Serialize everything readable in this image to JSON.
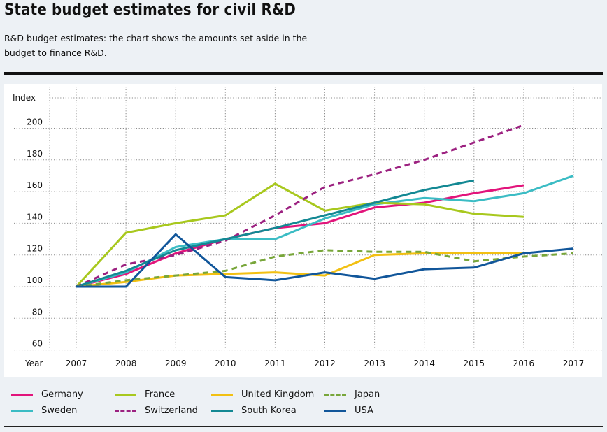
{
  "header": {
    "title": "State budget estimates for civil R&D",
    "subtitle": "R&D budget estimates: the chart shows the amounts set aside in the budget to finance R&D."
  },
  "chart_data": {
    "type": "line",
    "title": "State budget estimates for civil R&D",
    "xlabel": "Year",
    "ylabel": "Index",
    "x": [
      2007,
      2008,
      2009,
      2010,
      2011,
      2012,
      2013,
      2014,
      2015,
      2016,
      2017
    ],
    "x_tick_labels": [
      "2007",
      "2008",
      "2009",
      "2010",
      "2011",
      "2012",
      "2013",
      "2014",
      "2015",
      "2016",
      "2017"
    ],
    "y_ticks": [
      60,
      80,
      100,
      120,
      140,
      160,
      180,
      200
    ],
    "ylim": [
      60,
      210
    ],
    "grid": true,
    "legend_position": "bottom",
    "series": [
      {
        "name": "Germany",
        "color": "#e2147b",
        "dashed": false,
        "values": [
          100,
          108,
          121,
          130,
          137,
          140,
          150,
          153,
          159,
          164,
          null
        ]
      },
      {
        "name": "Sweden",
        "color": "#3bbcc4",
        "dashed": false,
        "values": [
          100,
          109,
          125,
          130,
          130,
          143,
          152,
          156,
          154,
          159,
          170
        ]
      },
      {
        "name": "France",
        "color": "#a8c81e",
        "dashed": false,
        "values": [
          100,
          134,
          140,
          145,
          165,
          148,
          153,
          152,
          146,
          144,
          null
        ]
      },
      {
        "name": "Switzerland",
        "color": "#9c2180",
        "dashed": true,
        "values": [
          100,
          114,
          120,
          129,
          145,
          163,
          171,
          180,
          191,
          202,
          null
        ]
      },
      {
        "name": "United Kingdom",
        "color": "#f2c012",
        "dashed": false,
        "values": [
          100,
          103,
          107,
          108,
          109,
          107,
          120,
          121,
          121,
          121,
          null
        ]
      },
      {
        "name": "South Korea",
        "color": "#138893",
        "dashed": false,
        "values": [
          100,
          110,
          123,
          130,
          137,
          145,
          153,
          161,
          167,
          null,
          null
        ]
      },
      {
        "name": "Japan",
        "color": "#78a63a",
        "dashed": true,
        "values": [
          100,
          104,
          107,
          110,
          119,
          123,
          122,
          122,
          116,
          119,
          121
        ]
      },
      {
        "name": "USA",
        "color": "#11569a",
        "dashed": false,
        "values": [
          100,
          100,
          133,
          106,
          104,
          109,
          105,
          111,
          112,
          121,
          124
        ]
      }
    ]
  },
  "legend": {
    "items": [
      {
        "label": "Germany",
        "color": "#e2147b",
        "dashed": false
      },
      {
        "label": "Sweden",
        "color": "#3bbcc4",
        "dashed": false
      },
      {
        "label": "France",
        "color": "#a8c81e",
        "dashed": false
      },
      {
        "label": "Switzerland",
        "color": "#9c2180",
        "dashed": true
      },
      {
        "label": "United Kingdom",
        "color": "#f2c012",
        "dashed": false
      },
      {
        "label": "South Korea",
        "color": "#138893",
        "dashed": false
      },
      {
        "label": "Japan",
        "color": "#78a63a",
        "dashed": true
      },
      {
        "label": "USA",
        "color": "#11569a",
        "dashed": false
      }
    ]
  }
}
